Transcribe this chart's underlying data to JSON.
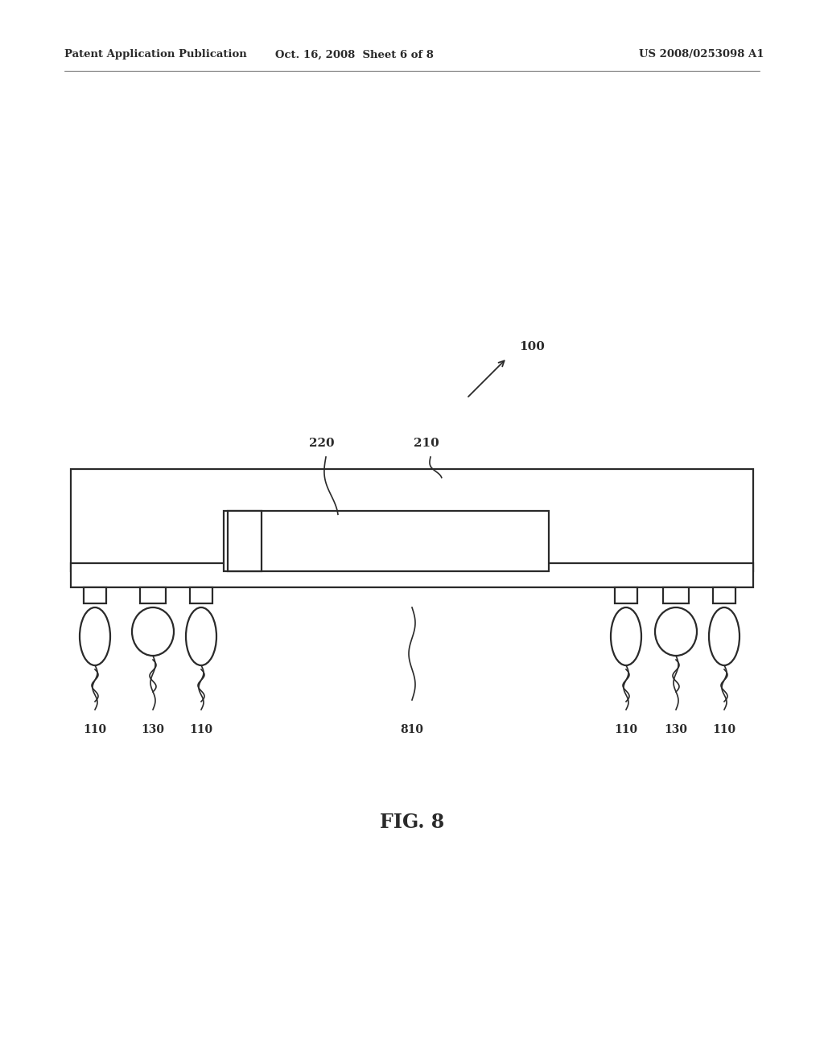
{
  "bg_color": "#ffffff",
  "header_left": "Patent Application Publication",
  "header_mid": "Oct. 16, 2008  Sheet 6 of 8",
  "header_right": "US 2008/0253098 A1",
  "fig_label": "FIG. 8",
  "label_100": "100",
  "label_220": "220",
  "label_210": "210",
  "label_810": "810",
  "label_110": "110",
  "label_130": "130",
  "line_color": "#2a2a2a",
  "line_width": 1.6
}
